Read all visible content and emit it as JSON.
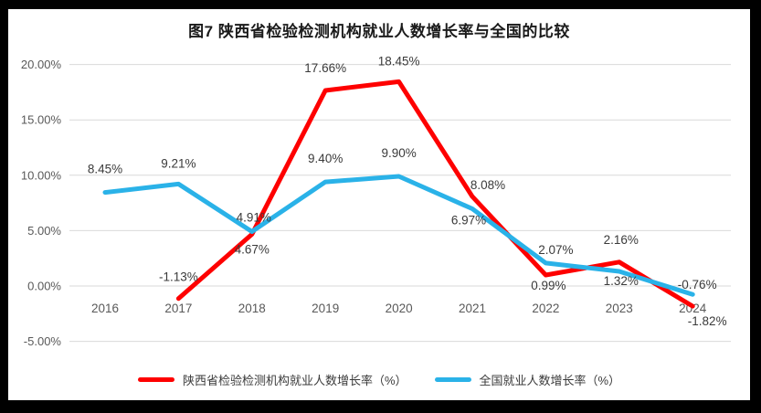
{
  "frame": {
    "background": "#000000",
    "panel_background": "#ffffff"
  },
  "chart_data": {
    "type": "line",
    "title": "图7 陕西省检验检测机构就业人数增长率与全国的比较",
    "categories": [
      "2016",
      "2017",
      "2018",
      "2019",
      "2020",
      "2021",
      "2022",
      "2023",
      "2024"
    ],
    "series": [
      {
        "name": "陕西省检验检测机构就业人数增长率（%）",
        "color": "#fe0000",
        "values": [
          null,
          -1.13,
          4.67,
          17.66,
          18.45,
          8.08,
          0.99,
          2.16,
          -1.82
        ],
        "labels": [
          "",
          "-1.13%",
          "4.67%",
          "17.66%",
          "18.45%",
          "8.08%",
          "0.99%",
          "2.16%",
          "-1.82%"
        ],
        "label_offsets": [
          [
            0,
            0
          ],
          [
            0,
            -19
          ],
          [
            0,
            21
          ],
          [
            0,
            -20
          ],
          [
            0,
            -18
          ],
          [
            17,
            -8
          ],
          [
            3,
            16
          ],
          [
            2,
            -20
          ],
          [
            16,
            21
          ]
        ]
      },
      {
        "name": "全国就业人数增长率（%）",
        "color": "#2ab2e8",
        "values": [
          8.45,
          9.21,
          4.91,
          9.4,
          9.9,
          6.97,
          2.07,
          1.32,
          -0.76
        ],
        "labels": [
          "8.45%",
          "9.21%",
          "4.91%",
          "9.40%",
          "9.90%",
          "6.97%",
          "2.07%",
          "1.32%",
          "-0.76%"
        ],
        "label_offsets": [
          [
            0,
            -21
          ],
          [
            0,
            -18
          ],
          [
            2,
            -11
          ],
          [
            0,
            -21
          ],
          [
            0,
            -21
          ],
          [
            -4,
            17
          ],
          [
            11,
            -10
          ],
          [
            2,
            15
          ],
          [
            5,
            -6
          ]
        ]
      }
    ],
    "y_axis": {
      "tick_values": [
        20,
        15,
        10,
        5,
        0,
        -5
      ],
      "tick_labels": [
        "20.00%",
        "15.00%",
        "10.00%",
        "5.00%",
        "0.00%",
        "-5.00%"
      ],
      "ylim": [
        -5,
        20
      ]
    },
    "grid": {
      "show_horizontal": true,
      "color": "#d9d9d9"
    },
    "text_colors": {
      "tick": "#595959",
      "data_label": "#3a3a3a",
      "title": "#1a1a1a",
      "legend": "#3a3a3a"
    },
    "legend_position": "bottom"
  }
}
